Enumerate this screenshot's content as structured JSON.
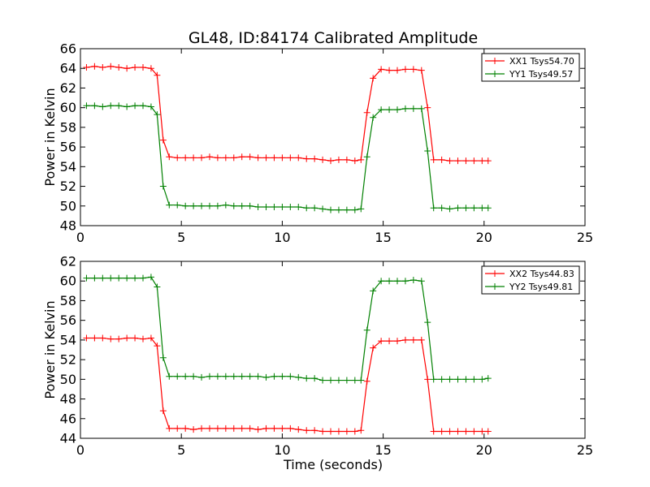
{
  "chart_data": [
    {
      "type": "line",
      "title": "GL48, ID:84174 Calibrated Amplitude",
      "xlabel": "",
      "ylabel": "Power in Kelvin",
      "xlim": [
        0,
        25
      ],
      "ylim": [
        48,
        66
      ],
      "xticks": [
        0,
        5,
        10,
        15,
        20,
        25
      ],
      "yticks": [
        48,
        50,
        52,
        54,
        56,
        58,
        60,
        62,
        64,
        66
      ],
      "grid": false,
      "legend_position": "top-right",
      "x": [
        0.3,
        0.7,
        1.1,
        1.5,
        1.9,
        2.3,
        2.7,
        3.1,
        3.5,
        3.8,
        4.1,
        4.4,
        4.8,
        5.2,
        5.6,
        6.0,
        6.4,
        6.8,
        7.2,
        7.6,
        8.0,
        8.4,
        8.8,
        9.2,
        9.6,
        10.0,
        10.4,
        10.8,
        11.2,
        11.6,
        12.0,
        12.4,
        12.8,
        13.2,
        13.6,
        13.9,
        14.2,
        14.5,
        14.9,
        15.3,
        15.7,
        16.1,
        16.5,
        16.9,
        17.2,
        17.5,
        17.9,
        18.3,
        18.7,
        19.1,
        19.5,
        19.9,
        20.2
      ],
      "series": [
        {
          "name": "XX1 Tsys54.70",
          "color": "#ff0000",
          "values": [
            64.1,
            64.2,
            64.1,
            64.2,
            64.1,
            64.0,
            64.1,
            64.1,
            64.0,
            63.3,
            56.7,
            55.0,
            54.9,
            54.9,
            54.9,
            54.9,
            55.0,
            54.9,
            54.9,
            54.9,
            55.0,
            55.0,
            54.9,
            54.9,
            54.9,
            54.9,
            54.9,
            54.9,
            54.8,
            54.8,
            54.7,
            54.6,
            54.7,
            54.7,
            54.6,
            54.7,
            59.5,
            63.0,
            63.9,
            63.8,
            63.8,
            63.9,
            63.9,
            63.8,
            60.0,
            54.7,
            54.7,
            54.6,
            54.6,
            54.6,
            54.6,
            54.6,
            54.6
          ]
        },
        {
          "name": "YY1 Tsys49.57",
          "color": "#008000",
          "values": [
            60.2,
            60.2,
            60.1,
            60.2,
            60.2,
            60.1,
            60.2,
            60.2,
            60.1,
            59.3,
            52.0,
            50.1,
            50.1,
            50.0,
            50.0,
            50.0,
            50.0,
            50.0,
            50.1,
            50.0,
            50.0,
            50.0,
            49.9,
            49.9,
            49.9,
            49.9,
            49.9,
            49.9,
            49.8,
            49.8,
            49.7,
            49.6,
            49.6,
            49.6,
            49.6,
            49.7,
            55.0,
            59.0,
            59.8,
            59.8,
            59.8,
            59.9,
            59.9,
            59.9,
            55.6,
            49.8,
            49.8,
            49.7,
            49.8,
            49.8,
            49.8,
            49.8,
            49.8
          ]
        }
      ]
    },
    {
      "type": "line",
      "title": "",
      "xlabel": "Time (seconds)",
      "ylabel": "Power in Kelvin",
      "xlim": [
        0,
        25
      ],
      "ylim": [
        44,
        62
      ],
      "xticks": [
        0,
        5,
        10,
        15,
        20,
        25
      ],
      "yticks": [
        44,
        46,
        48,
        50,
        52,
        54,
        56,
        58,
        60,
        62
      ],
      "grid": false,
      "legend_position": "top-right",
      "x": [
        0.3,
        0.7,
        1.1,
        1.5,
        1.9,
        2.3,
        2.7,
        3.1,
        3.5,
        3.8,
        4.1,
        4.4,
        4.8,
        5.2,
        5.6,
        6.0,
        6.4,
        6.8,
        7.2,
        7.6,
        8.0,
        8.4,
        8.8,
        9.2,
        9.6,
        10.0,
        10.4,
        10.8,
        11.2,
        11.6,
        12.0,
        12.4,
        12.8,
        13.2,
        13.6,
        13.9,
        14.2,
        14.5,
        14.9,
        15.3,
        15.7,
        16.1,
        16.5,
        16.9,
        17.2,
        17.5,
        17.9,
        18.3,
        18.7,
        19.1,
        19.5,
        19.9,
        20.2
      ],
      "series": [
        {
          "name": "XX2 Tsys44.83",
          "color": "#ff0000",
          "values": [
            54.2,
            54.2,
            54.2,
            54.1,
            54.1,
            54.2,
            54.2,
            54.1,
            54.2,
            53.4,
            46.8,
            45.0,
            45.0,
            45.0,
            44.9,
            45.0,
            45.0,
            45.0,
            45.0,
            45.0,
            45.0,
            45.0,
            44.9,
            45.0,
            45.0,
            45.0,
            45.0,
            44.9,
            44.8,
            44.8,
            44.7,
            44.7,
            44.7,
            44.7,
            44.7,
            44.8,
            49.8,
            53.2,
            53.9,
            53.9,
            53.9,
            54.0,
            54.0,
            54.0,
            50.0,
            44.7,
            44.7,
            44.7,
            44.7,
            44.7,
            44.7,
            44.7,
            44.7
          ]
        },
        {
          "name": "YY2 Tsys49.81",
          "color": "#008000",
          "values": [
            60.3,
            60.3,
            60.3,
            60.3,
            60.3,
            60.3,
            60.3,
            60.3,
            60.4,
            59.4,
            52.2,
            50.3,
            50.3,
            50.3,
            50.3,
            50.2,
            50.3,
            50.3,
            50.3,
            50.3,
            50.3,
            50.3,
            50.3,
            50.2,
            50.3,
            50.3,
            50.3,
            50.2,
            50.1,
            50.1,
            49.9,
            49.9,
            49.9,
            49.9,
            49.9,
            49.9,
            55.0,
            59.0,
            60.0,
            60.0,
            60.0,
            60.0,
            60.1,
            60.0,
            55.8,
            50.0,
            50.0,
            50.0,
            50.0,
            50.0,
            50.0,
            50.0,
            50.1
          ]
        }
      ]
    }
  ]
}
